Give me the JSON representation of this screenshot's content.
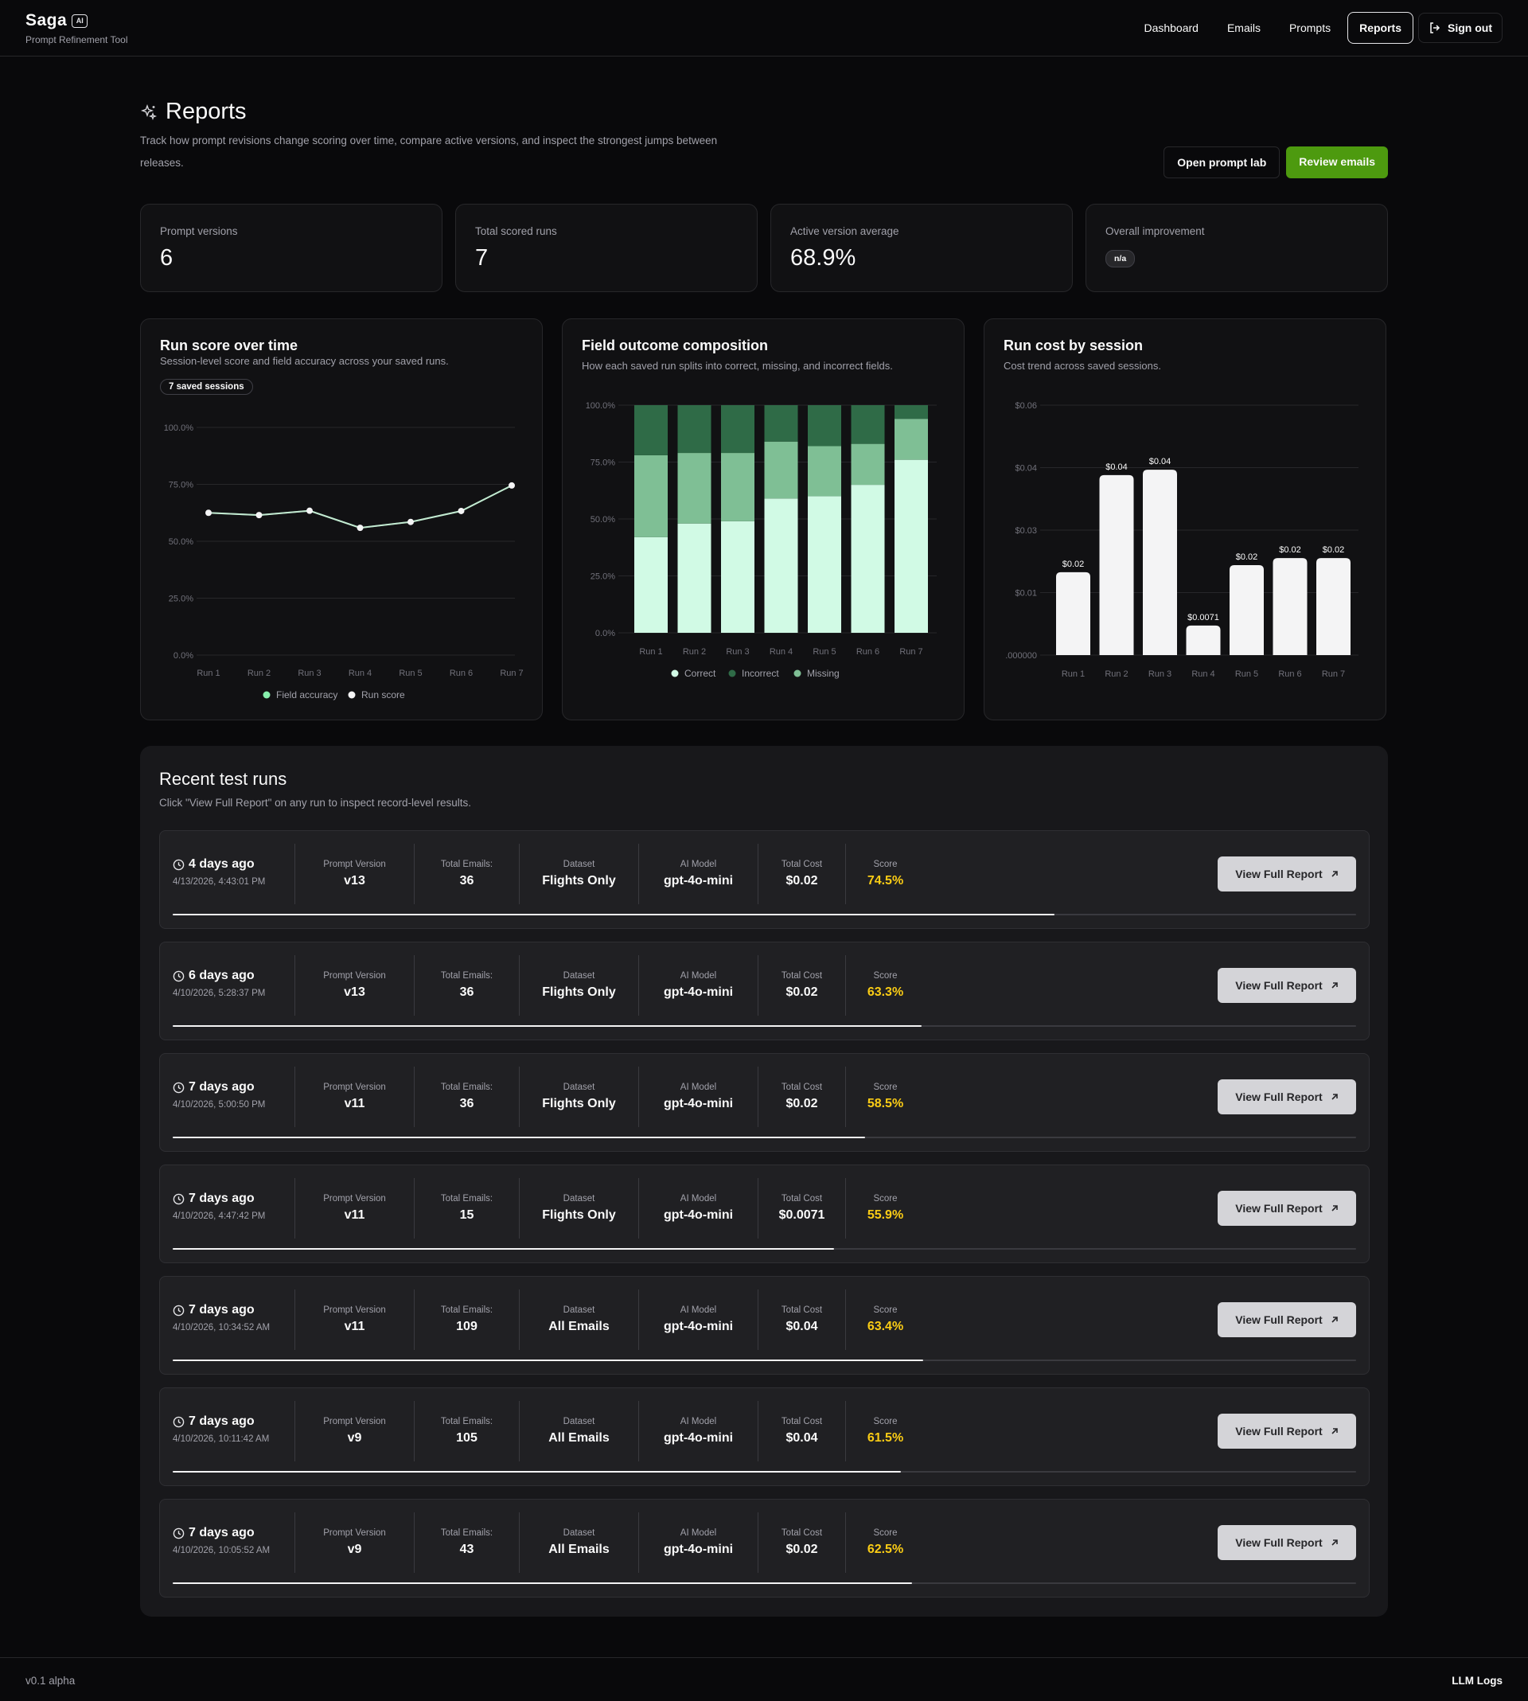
{
  "brand": {
    "name": "Saga",
    "badge": "AI",
    "subtitle": "Prompt Refinement Tool"
  },
  "nav": {
    "items": [
      {
        "label": "Dashboard",
        "active": false
      },
      {
        "label": "Emails",
        "active": false
      },
      {
        "label": "Prompts",
        "active": false
      },
      {
        "label": "Reports",
        "active": true
      }
    ],
    "signout": "Sign out"
  },
  "page": {
    "title": "Reports",
    "description": "Track how prompt revisions change scoring over time, compare active versions, and inspect the strongest jumps between releases.",
    "open_prompt_lab": "Open prompt lab",
    "review_emails": "Review emails"
  },
  "stats": [
    {
      "label": "Prompt versions",
      "value": "6"
    },
    {
      "label": "Total scored runs",
      "value": "7"
    },
    {
      "label": "Active version average",
      "value": "68.9%"
    },
    {
      "label": "Overall improvement",
      "pill": "n/a"
    }
  ],
  "charts": {
    "score": {
      "title": "Run score over time",
      "subtitle": "Session-level score and field accuracy across your saved runs.",
      "pill": "7 saved sessions",
      "legend": [
        "Field accuracy",
        "Run score"
      ]
    },
    "composition": {
      "title": "Field outcome composition",
      "subtitle": "How each saved run splits into correct, missing, and incorrect fields.",
      "legend": [
        "Correct",
        "Incorrect",
        "Missing"
      ]
    },
    "cost": {
      "title": "Run cost by session",
      "subtitle": "Cost trend across saved sessions."
    }
  },
  "chart_data": [
    {
      "type": "line",
      "title": "Run score over time",
      "categories": [
        "Run 1",
        "Run 2",
        "Run 3",
        "Run 4",
        "Run 5",
        "Run 6",
        "Run 7"
      ],
      "y_ticks": [
        "0.0%",
        "25.0%",
        "50.0%",
        "75.0%",
        "100.0%"
      ],
      "ylim": [
        0,
        100
      ],
      "grid": true,
      "legend_position": "bottom",
      "series": [
        {
          "name": "Field accuracy",
          "values": [
            62.5,
            61.5,
            63.4,
            55.9,
            58.5,
            63.3,
            74.5
          ],
          "color": "#86efac"
        },
        {
          "name": "Run score",
          "values": [
            62.5,
            61.5,
            63.4,
            55.9,
            58.5,
            63.3,
            74.5
          ],
          "color": "#f4f4f5"
        }
      ]
    },
    {
      "type": "bar",
      "stacked": true,
      "title": "Field outcome composition",
      "categories": [
        "Run 1",
        "Run 2",
        "Run 3",
        "Run 4",
        "Run 5",
        "Run 6",
        "Run 7"
      ],
      "y_ticks": [
        "0.0%",
        "25.0%",
        "50.0%",
        "75.0%",
        "100.0%"
      ],
      "ylim": [
        0,
        100
      ],
      "grid": true,
      "legend_position": "bottom",
      "series": [
        {
          "name": "Correct",
          "values": [
            42,
            48,
            49,
            59,
            60,
            65,
            76
          ],
          "color": "#d1fae5"
        },
        {
          "name": "Missing",
          "values": [
            36,
            31,
            30,
            25,
            22,
            18,
            18
          ],
          "color": "#7fbf95"
        },
        {
          "name": "Incorrect",
          "values": [
            22,
            21,
            21,
            16,
            18,
            17,
            6
          ],
          "color": "#2f6b47"
        }
      ]
    },
    {
      "type": "bar",
      "title": "Run cost by session",
      "categories": [
        "Run 1",
        "Run 2",
        "Run 3",
        "Run 4",
        "Run 5",
        "Run 6",
        "Run 7"
      ],
      "values": [
        0.0199,
        0.0432,
        0.0445,
        0.0071,
        0.0216,
        0.0233,
        0.0233
      ],
      "data_labels": [
        "$0.02",
        "$0.04",
        "$0.04",
        "$0.0071",
        "$0.02",
        "$0.02",
        "$0.02"
      ],
      "y_ticks": [
        ".000000",
        "$0.01",
        "$0.03",
        "$0.04",
        "$0.06"
      ],
      "ylim": [
        0,
        0.06
      ],
      "grid": true,
      "color": "#f4f4f5"
    }
  ],
  "runs": {
    "title": "Recent test runs",
    "subtitle": "Click \"View Full Report\" on any run to inspect record-level results.",
    "labels": {
      "version": "Prompt Version",
      "emails": "Total Emails:",
      "dataset": "Dataset",
      "model": "AI Model",
      "cost": "Total Cost",
      "score": "Score",
      "button": "View Full Report"
    },
    "items": [
      {
        "ago": "4 days ago",
        "date": "4/13/2026, 4:43:01 PM",
        "version": "v13",
        "emails": "36",
        "dataset": "Flights Only",
        "model": "gpt-4o-mini",
        "cost": "$0.02",
        "score": "74.5%",
        "progress": 0.745
      },
      {
        "ago": "6 days ago",
        "date": "4/10/2026, 5:28:37 PM",
        "version": "v13",
        "emails": "36",
        "dataset": "Flights Only",
        "model": "gpt-4o-mini",
        "cost": "$0.02",
        "score": "63.3%",
        "progress": 0.633
      },
      {
        "ago": "7 days ago",
        "date": "4/10/2026, 5:00:50 PM",
        "version": "v11",
        "emails": "36",
        "dataset": "Flights Only",
        "model": "gpt-4o-mini",
        "cost": "$0.02",
        "score": "58.5%",
        "progress": 0.585
      },
      {
        "ago": "7 days ago",
        "date": "4/10/2026, 4:47:42 PM",
        "version": "v11",
        "emails": "15",
        "dataset": "Flights Only",
        "model": "gpt-4o-mini",
        "cost": "$0.0071",
        "score": "55.9%",
        "progress": 0.559
      },
      {
        "ago": "7 days ago",
        "date": "4/10/2026, 10:34:52 AM",
        "version": "v11",
        "emails": "109",
        "dataset": "All Emails",
        "model": "gpt-4o-mini",
        "cost": "$0.04",
        "score": "63.4%",
        "progress": 0.634
      },
      {
        "ago": "7 days ago",
        "date": "4/10/2026, 10:11:42 AM",
        "version": "v9",
        "emails": "105",
        "dataset": "All Emails",
        "model": "gpt-4o-mini",
        "cost": "$0.04",
        "score": "61.5%",
        "progress": 0.615
      },
      {
        "ago": "7 days ago",
        "date": "4/10/2026, 10:05:52 AM",
        "version": "v9",
        "emails": "43",
        "dataset": "All Emails",
        "model": "gpt-4o-mini",
        "cost": "$0.02",
        "score": "62.5%",
        "progress": 0.625
      }
    ]
  },
  "footer": {
    "version": "v0.1 alpha",
    "llm_logs": "LLM Logs"
  }
}
